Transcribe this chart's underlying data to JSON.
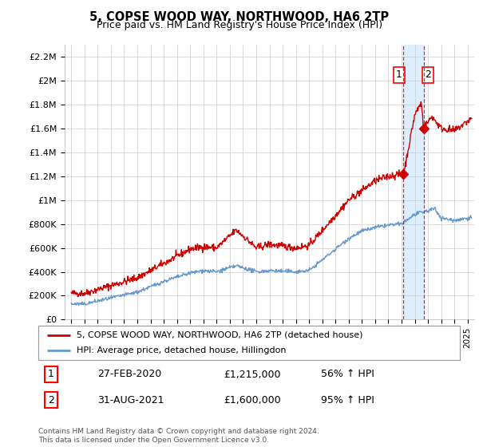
{
  "title": "5, COPSE WOOD WAY, NORTHWOOD, HA6 2TP",
  "subtitle": "Price paid vs. HM Land Registry's House Price Index (HPI)",
  "ylim": [
    0,
    2300000
  ],
  "yticks": [
    0,
    200000,
    400000,
    600000,
    800000,
    1000000,
    1200000,
    1400000,
    1600000,
    1800000,
    2000000,
    2200000
  ],
  "ytick_labels": [
    "£0",
    "£200K",
    "£400K",
    "£600K",
    "£800K",
    "£1M",
    "£1.2M",
    "£1.4M",
    "£1.6M",
    "£1.8M",
    "£2M",
    "£2.2M"
  ],
  "legend_line1": "5, COPSE WOOD WAY, NORTHWOOD, HA6 2TP (detached house)",
  "legend_line2": "HPI: Average price, detached house, Hillingdon",
  "line1_color": "#cc0000",
  "line2_color": "#6699cc",
  "shade_color": "#ddeeff",
  "annotation1_label": "1",
  "annotation1_date": "27-FEB-2020",
  "annotation1_price": "£1,215,000",
  "annotation1_pct": "56% ↑ HPI",
  "annotation2_label": "2",
  "annotation2_date": "31-AUG-2021",
  "annotation2_price": "£1,600,000",
  "annotation2_pct": "95% ↑ HPI",
  "footer": "Contains HM Land Registry data © Crown copyright and database right 2024.\nThis data is licensed under the Open Government Licence v3.0.",
  "background_color": "#ffffff",
  "grid_color": "#cccccc",
  "sale1_x": 2020.15,
  "sale1_y": 1215000,
  "sale2_x": 2021.67,
  "sale2_y": 1600000,
  "vline1_x": 2020.15,
  "vline2_x": 2021.67,
  "xlim_left": 1994.5,
  "xlim_right": 2025.5
}
